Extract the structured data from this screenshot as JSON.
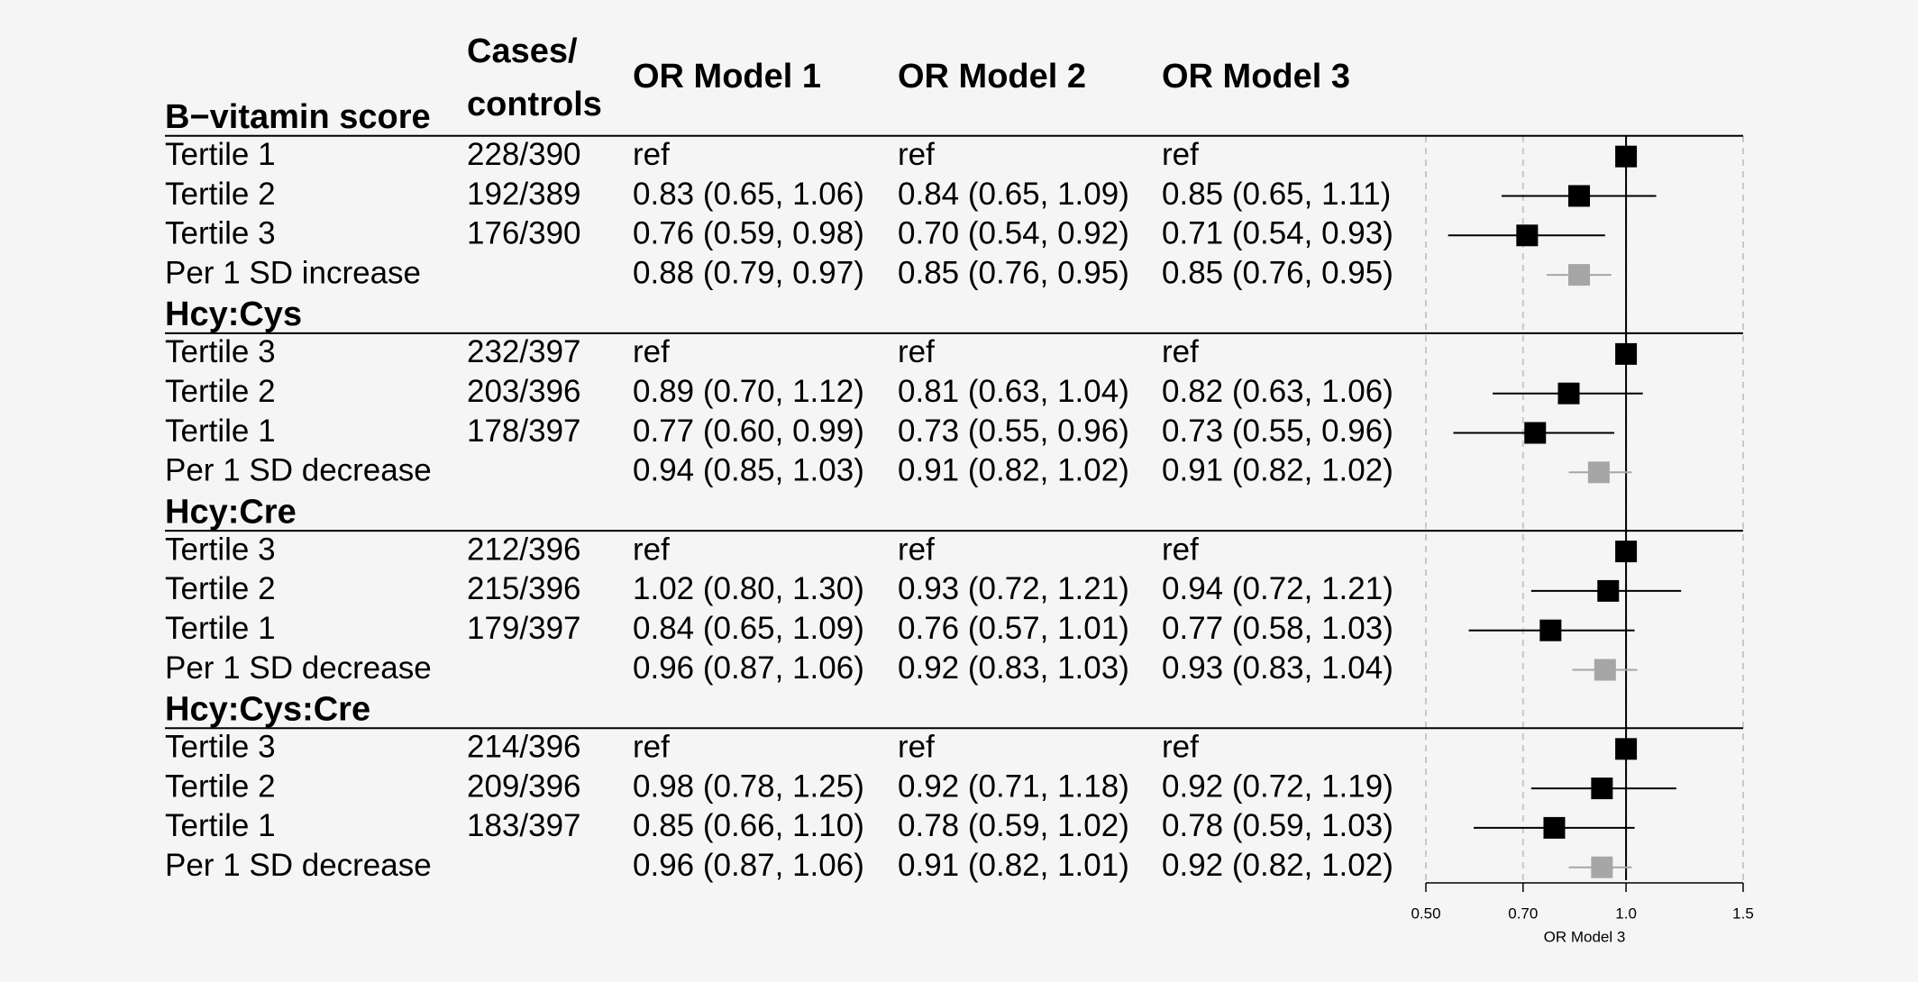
{
  "chart_data": {
    "type": "forest",
    "columns": [
      "Cases/\ncontrols",
      "OR Model 1",
      "OR Model 2",
      "OR Model 3"
    ],
    "groups": [
      {
        "name": "B−vitamin score",
        "rows": [
          {
            "label": "Tertile 1",
            "cases": "228/390",
            "or": [
              "ref",
              "ref",
              "ref"
            ],
            "est": 1,
            "color": "#000000"
          },
          {
            "label": "Tertile 2",
            "cases": "192/389",
            "or": [
              "0.83 (0.65, 1.06)",
              "0.84 (0.65, 1.09)",
              "0.85 (0.65, 1.11)"
            ],
            "est": 0.85,
            "lo": 0.65,
            "hi": 1.11,
            "color": "#000000"
          },
          {
            "label": "Tertile 3",
            "cases": "176/390",
            "or": [
              "0.76 (0.59, 0.98)",
              "0.70 (0.54, 0.92)",
              "0.71 (0.54, 0.93)"
            ],
            "est": 0.71,
            "lo": 0.54,
            "hi": 0.93,
            "color": "#000000"
          },
          {
            "label": "Per 1 SD increase",
            "or": [
              "0.88 (0.79, 0.97)",
              "0.85 (0.76, 0.95)",
              "0.85 (0.76, 0.95)"
            ],
            "est": 0.85,
            "lo": 0.76,
            "hi": 0.95,
            "color": "#a6a6a6"
          }
        ]
      },
      {
        "name": "Hcy:Cys",
        "rows": [
          {
            "label": "Tertile 3",
            "cases": "232/397",
            "or": [
              "ref",
              "ref",
              "ref"
            ],
            "est": 1,
            "color": "#000000"
          },
          {
            "label": "Tertile 2",
            "cases": "203/396",
            "or": [
              "0.89 (0.70, 1.12)",
              "0.81 (0.63, 1.04)",
              "0.82 (0.63, 1.06)"
            ],
            "est": 0.82,
            "lo": 0.63,
            "hi": 1.06,
            "color": "#000000"
          },
          {
            "label": "Tertile 1",
            "cases": "178/397",
            "or": [
              "0.77 (0.60, 0.99)",
              "0.73 (0.55, 0.96)",
              "0.73 (0.55, 0.96)"
            ],
            "est": 0.73,
            "lo": 0.55,
            "hi": 0.96,
            "color": "#000000"
          },
          {
            "label": "Per 1 SD decrease",
            "or": [
              "0.94 (0.85, 1.03)",
              "0.91 (0.82, 1.02)",
              "0.91 (0.82, 1.02)"
            ],
            "est": 0.91,
            "lo": 0.82,
            "hi": 1.02,
            "color": "#a6a6a6"
          }
        ]
      },
      {
        "name": "Hcy:Cre",
        "rows": [
          {
            "label": "Tertile 3",
            "cases": "212/396",
            "or": [
              "ref",
              "ref",
              "ref"
            ],
            "est": 1,
            "color": "#000000"
          },
          {
            "label": "Tertile 2",
            "cases": "215/396",
            "or": [
              "1.02 (0.80, 1.30)",
              "0.93 (0.72, 1.21)",
              "0.94 (0.72, 1.21)"
            ],
            "est": 0.94,
            "lo": 0.72,
            "hi": 1.21,
            "color": "#000000"
          },
          {
            "label": "Tertile 1",
            "cases": "179/397",
            "or": [
              "0.84 (0.65, 1.09)",
              "0.76 (0.57, 1.01)",
              "0.77 (0.58, 1.03)"
            ],
            "est": 0.77,
            "lo": 0.58,
            "hi": 1.03,
            "color": "#000000"
          },
          {
            "label": "Per 1 SD decrease",
            "or": [
              "0.96 (0.87, 1.06)",
              "0.92 (0.83, 1.03)",
              "0.93 (0.83, 1.04)"
            ],
            "est": 0.93,
            "lo": 0.83,
            "hi": 1.04,
            "color": "#a6a6a6"
          }
        ]
      },
      {
        "name": "Hcy:Cys:Cre",
        "rows": [
          {
            "label": "Tertile 3",
            "cases": "214/396",
            "or": [
              "ref",
              "ref",
              "ref"
            ],
            "est": 1,
            "color": "#000000"
          },
          {
            "label": "Tertile 2",
            "cases": "209/396",
            "or": [
              "0.98 (0.78, 1.25)",
              "0.92 (0.71, 1.18)",
              "0.92 (0.72, 1.19)"
            ],
            "est": 0.92,
            "lo": 0.72,
            "hi": 1.19,
            "color": "#000000"
          },
          {
            "label": "Tertile 1",
            "cases": "183/397",
            "or": [
              "0.85 (0.66, 1.10)",
              "0.78 (0.59, 1.02)",
              "0.78 (0.59, 1.03)"
            ],
            "est": 0.78,
            "lo": 0.59,
            "hi": 1.03,
            "color": "#000000"
          },
          {
            "label": "Per 1 SD decrease",
            "or": [
              "0.96 (0.87, 1.06)",
              "0.91 (0.82, 1.01)",
              "0.92 (0.82, 1.02)"
            ],
            "est": 0.92,
            "lo": 0.82,
            "hi": 1.02,
            "color": "#a6a6a6"
          }
        ]
      }
    ],
    "xlabel": "OR Model 3",
    "xscale": "log",
    "xlim": [
      0.5,
      1.5
    ],
    "xticks": [
      {
        "value": 0.5,
        "label": "0.50"
      },
      {
        "value": 0.7,
        "label": "0.70"
      },
      {
        "value": 1,
        "label": "1.0"
      },
      1.5
    ],
    "grid": true,
    "ref_line": 1
  }
}
